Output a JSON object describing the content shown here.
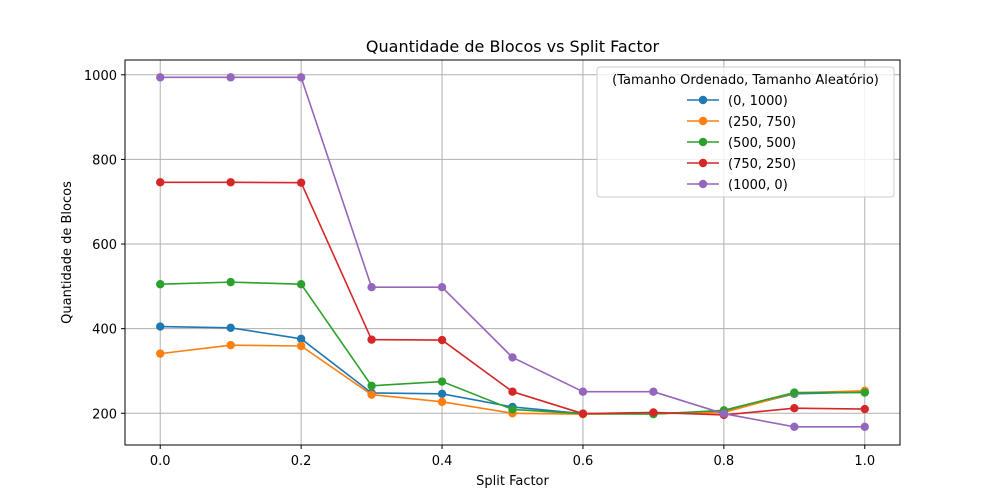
{
  "chart_data": {
    "type": "line",
    "title": "Quantidade de Blocos vs Split Factor",
    "xlabel": "Split Factor",
    "ylabel": "Quantidade de Blocos",
    "xlim": [
      -0.05,
      1.05
    ],
    "ylim": [
      125,
      1035
    ],
    "xticks": [
      0.0,
      0.2,
      0.4,
      0.6,
      0.8,
      1.0
    ],
    "xtick_labels": [
      "0.0",
      "0.2",
      "0.4",
      "0.6",
      "0.8",
      "1.0"
    ],
    "yticks": [
      200,
      400,
      600,
      800,
      1000
    ],
    "ytick_labels": [
      "200",
      "400",
      "600",
      "800",
      "1000"
    ],
    "grid": true,
    "legend": {
      "title": "(Tamanho Ordenado, Tamanho Aleatório)",
      "placement": "top-right"
    },
    "x": [
      0.0,
      0.1,
      0.2,
      0.3,
      0.4,
      0.5,
      0.6,
      0.7,
      0.8,
      0.9,
      1.0
    ],
    "series": [
      {
        "name": "(0, 1000)",
        "color": "#1f77b4",
        "values": [
          405,
          402,
          376,
          248,
          246,
          215,
          199,
          199,
          205,
          246,
          250
        ]
      },
      {
        "name": "(250, 750)",
        "color": "#ff7f0e",
        "values": [
          341,
          361,
          359,
          244,
          227,
          200,
          198,
          199,
          202,
          248,
          253
        ]
      },
      {
        "name": "(500, 500)",
        "color": "#2ca02c",
        "values": [
          505,
          510,
          505,
          265,
          275,
          209,
          199,
          198,
          207,
          249,
          249
        ]
      },
      {
        "name": "(750, 250)",
        "color": "#d62728",
        "values": [
          746,
          746,
          745,
          374,
          373,
          251,
          199,
          202,
          196,
          212,
          210
        ]
      },
      {
        "name": "(1000, 0)",
        "color": "#9467bd",
        "values": [
          994,
          994,
          994,
          498,
          498,
          332,
          251,
          251,
          199,
          168,
          168
        ]
      }
    ]
  }
}
